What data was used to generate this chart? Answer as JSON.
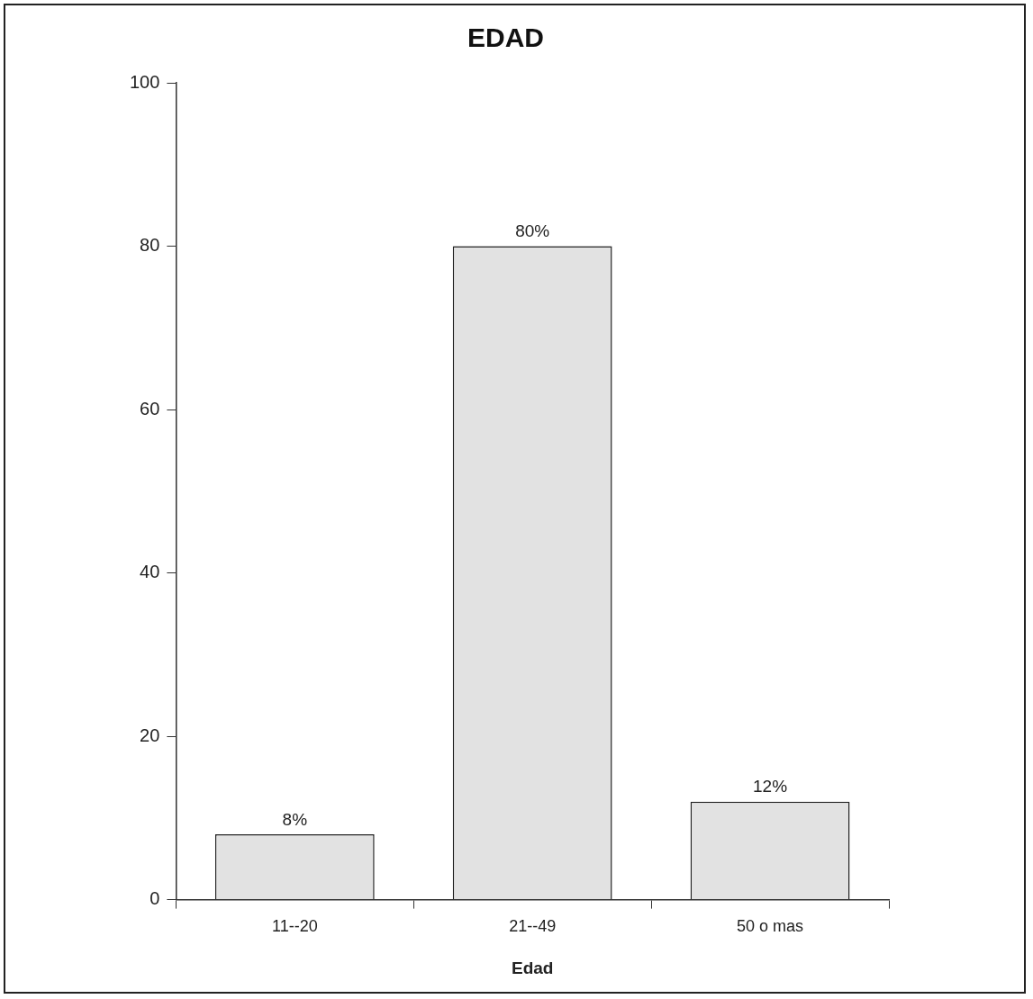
{
  "chart_data": {
    "type": "bar",
    "title": "EDAD",
    "xlabel": "Edad",
    "categories": [
      "11--20",
      "21--49",
      "50 o mas"
    ],
    "values": [
      8,
      80,
      12
    ],
    "color": "#e2e2e2",
    "value_labels": [
      "8%",
      "80%",
      "12%"
    ],
    "ylim": [
      0,
      100
    ],
    "yticks": [
      0,
      20,
      40,
      60,
      80,
      100
    ],
    "grid": false,
    "legend": false
  }
}
